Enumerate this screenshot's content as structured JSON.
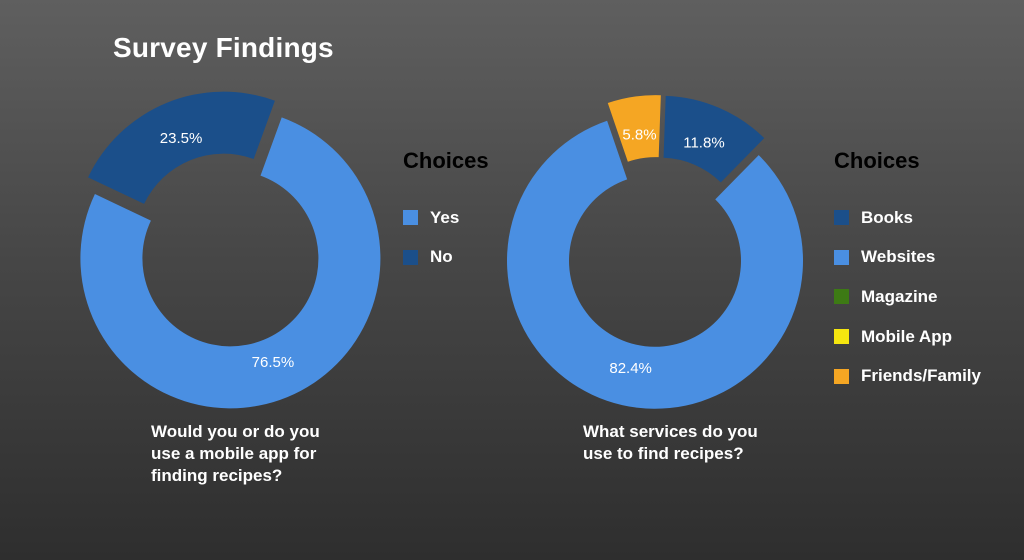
{
  "title": "Survey Findings",
  "chart_data": [
    {
      "type": "pie",
      "donut": true,
      "question": "Would you or do you use a mobile app for finding recipes?",
      "legend_title": "Choices",
      "slices": [
        {
          "label": "Yes",
          "value": 76.5,
          "display": "76.5%",
          "color": "#4a8fe2"
        },
        {
          "label": "No",
          "value": 23.5,
          "display": "23.5%",
          "color": "#1b4f8a"
        }
      ]
    },
    {
      "type": "pie",
      "donut": true,
      "question": "What services do you use to find recipes?",
      "legend_title": "Choices",
      "legend": [
        {
          "label": "Books",
          "color": "#1b4f8a"
        },
        {
          "label": "Websites",
          "color": "#4a8fe2"
        },
        {
          "label": "Magazine",
          "color": "#3d7a14"
        },
        {
          "label": "Mobile App",
          "color": "#f5e60f"
        },
        {
          "label": "Friends/Family",
          "color": "#f5a623"
        }
      ],
      "slices": [
        {
          "label": "Books",
          "value": 11.8,
          "display": "11.8%",
          "color": "#1b4f8a"
        },
        {
          "label": "Websites",
          "value": 82.4,
          "display": "82.4%",
          "color": "#4a8fe2"
        },
        {
          "label": "Friends/Family",
          "value": 5.8,
          "display": "5.8%",
          "color": "#f5a623"
        }
      ]
    }
  ]
}
